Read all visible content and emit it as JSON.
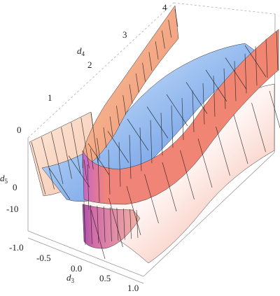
{
  "chart_data": {
    "type": "surface3d",
    "title": "",
    "axes": {
      "x": {
        "name": "d",
        "sub": "3",
        "range": [
          -1.0,
          1.0
        ],
        "ticks": [
          "-1.0",
          "-0.5",
          "0.0",
          "0.5",
          "1.0"
        ]
      },
      "y": {
        "name": "d",
        "sub": "4",
        "range": [
          0,
          4
        ],
        "ticks": [
          "0",
          "1",
          "2",
          "3",
          "4"
        ]
      },
      "z": {
        "name": "d",
        "sub": "5",
        "range": [
          -15,
          10
        ],
        "ticks": [
          "0",
          "-10"
        ]
      }
    },
    "surfaces": [
      {
        "kind": "ruled-band",
        "shape": "U-shaped sheet opening toward d3 = 1",
        "color": "#f0806c"
      },
      {
        "kind": "saddle-sheet",
        "shape": "blue saddle surface",
        "color": "#7fb0ec"
      },
      {
        "kind": "lower-sheet",
        "shape": "pink/white sheet below",
        "color": "#f6c9c0"
      }
    ],
    "colors": {
      "front_band": "#f08a72",
      "band_inner": "#b65ab4",
      "saddle": "#6a9ae8",
      "lower": "#f9dcd6"
    },
    "grid": false,
    "legend": "none"
  }
}
